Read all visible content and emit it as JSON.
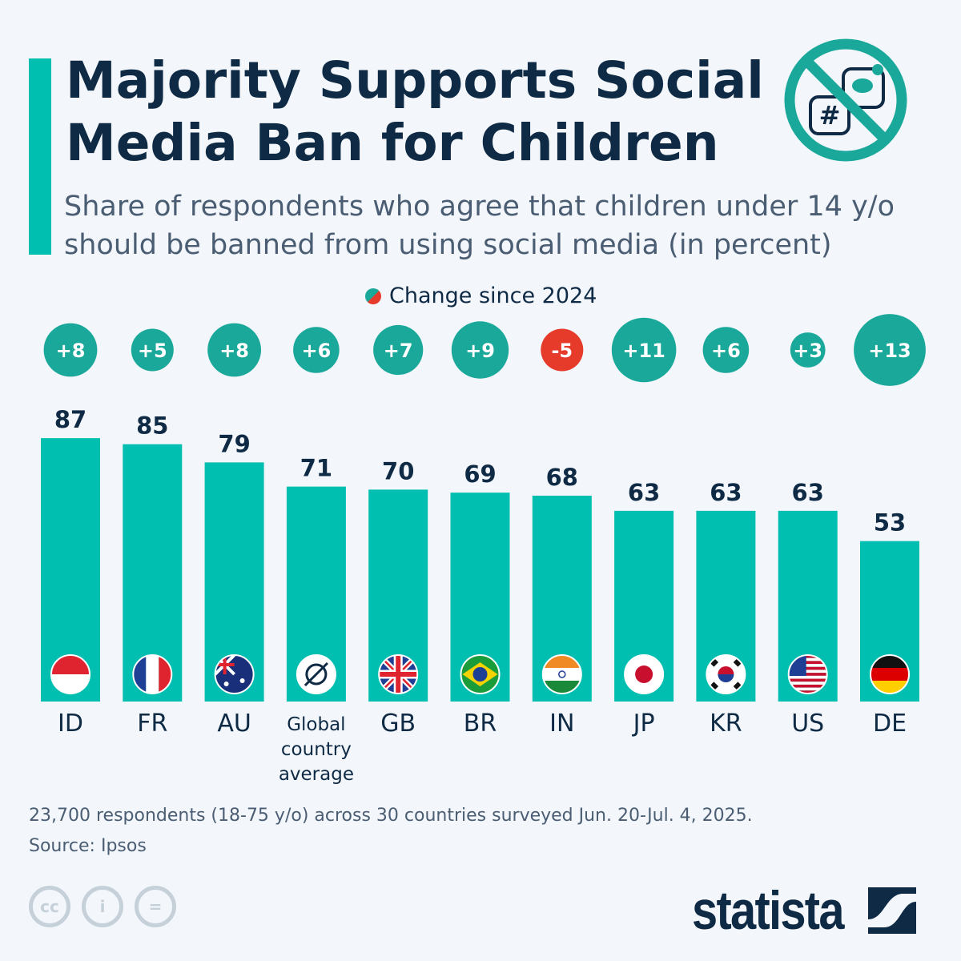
{
  "title": "Majority Supports Social Media Ban for Children",
  "subtitle": "Share of respondents who agree that children under 14 y/o should be banned from using social media (in percent)",
  "legend": "Change since 2024",
  "note": "23,700 respondents (18-75 y/o) across 30 countries surveyed Jun. 20-Jul. 4, 2025.",
  "source": "Source: Ipsos",
  "brand": "statista",
  "colors": {
    "bar": "#00bfb0",
    "positive": "#1aa89a",
    "negative": "#e63a2a",
    "text": "#0f2a45"
  },
  "chart_data": {
    "type": "bar",
    "categories": [
      "ID",
      "FR",
      "AU",
      "Global country average",
      "GB",
      "BR",
      "IN",
      "JP",
      "KR",
      "US",
      "DE"
    ],
    "values": [
      87,
      85,
      79,
      71,
      70,
      69,
      68,
      63,
      63,
      63,
      53
    ],
    "change_since_2024": [
      8,
      5,
      8,
      6,
      7,
      9,
      -5,
      11,
      6,
      3,
      13
    ],
    "change_labels": [
      "+8",
      "+5",
      "+8",
      "+6",
      "+7",
      "+9",
      "-5",
      "+11",
      "+6",
      "+3",
      "+13"
    ],
    "flags": [
      "indonesia",
      "france",
      "australia",
      "global",
      "united-kingdom",
      "brazil",
      "india",
      "japan",
      "south-korea",
      "united-states",
      "germany"
    ],
    "ylim": [
      0,
      100
    ],
    "grid": false
  }
}
